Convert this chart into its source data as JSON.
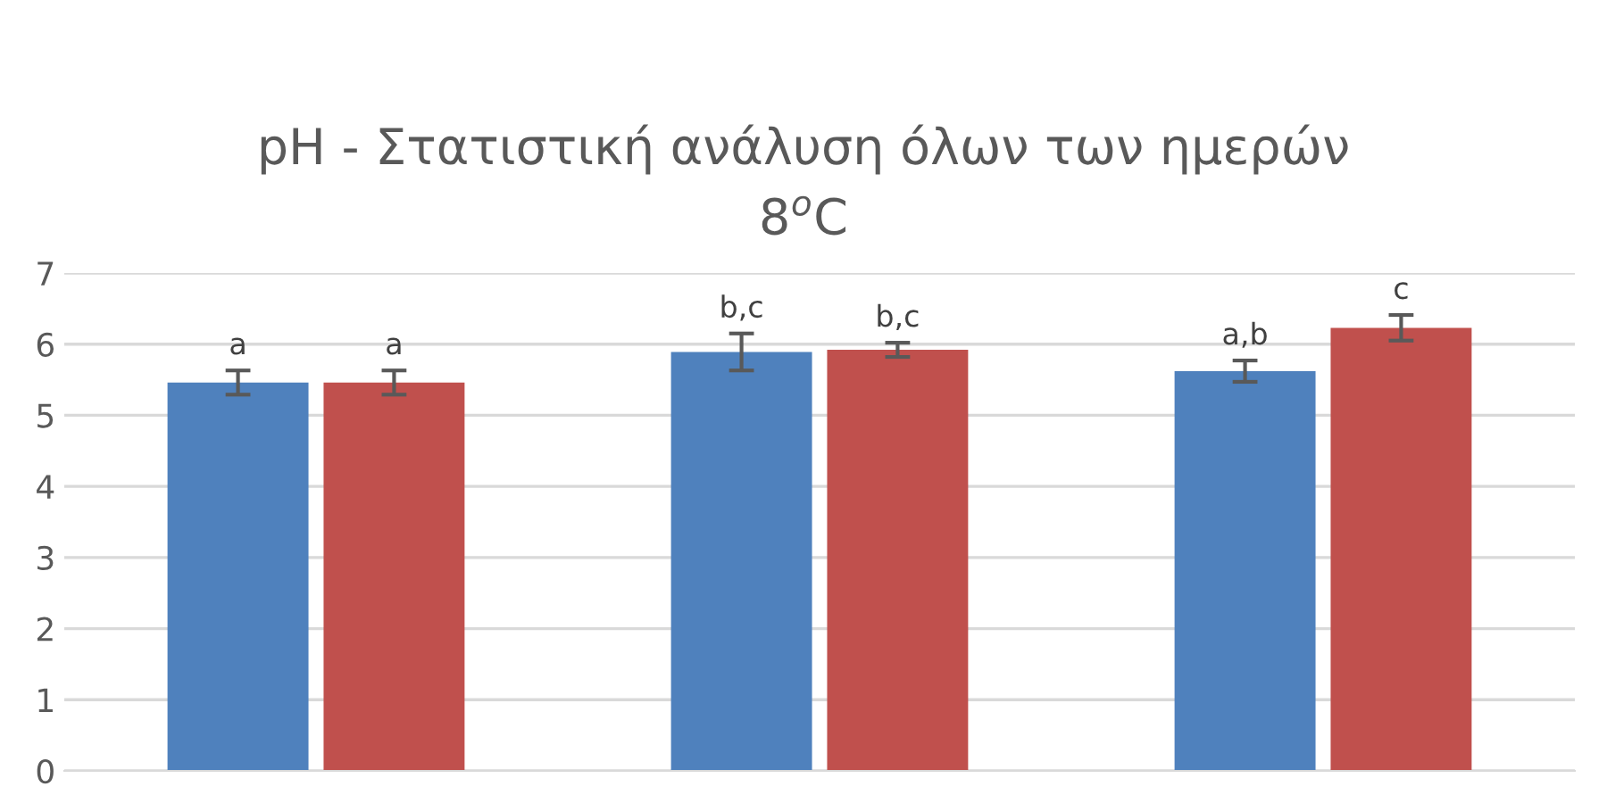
{
  "chart_data": {
    "type": "bar",
    "title": "pH - Στατιστική ανάλυση όλων των ημερών\n8$^{o}$C",
    "categories": [
      null,
      null,
      null
    ],
    "series": [
      {
        "color": "#4f81bd",
        "values": [
          5.46,
          5.89,
          5.62
        ],
        "errors": [
          0.17,
          0.26,
          0.15
        ],
        "value_labels": [
          "a",
          "b,c",
          "a,b"
        ]
      },
      {
        "color": "#c0504d",
        "values": [
          5.46,
          5.92,
          6.23
        ],
        "errors": [
          0.17,
          0.1,
          0.18
        ],
        "value_labels": [
          "a",
          "b,c",
          "c"
        ]
      }
    ],
    "ylim": [
      0,
      7
    ],
    "yticks": [
      0,
      1,
      2,
      3,
      4,
      5,
      6,
      7
    ],
    "grid": "y",
    "legend": false
  }
}
